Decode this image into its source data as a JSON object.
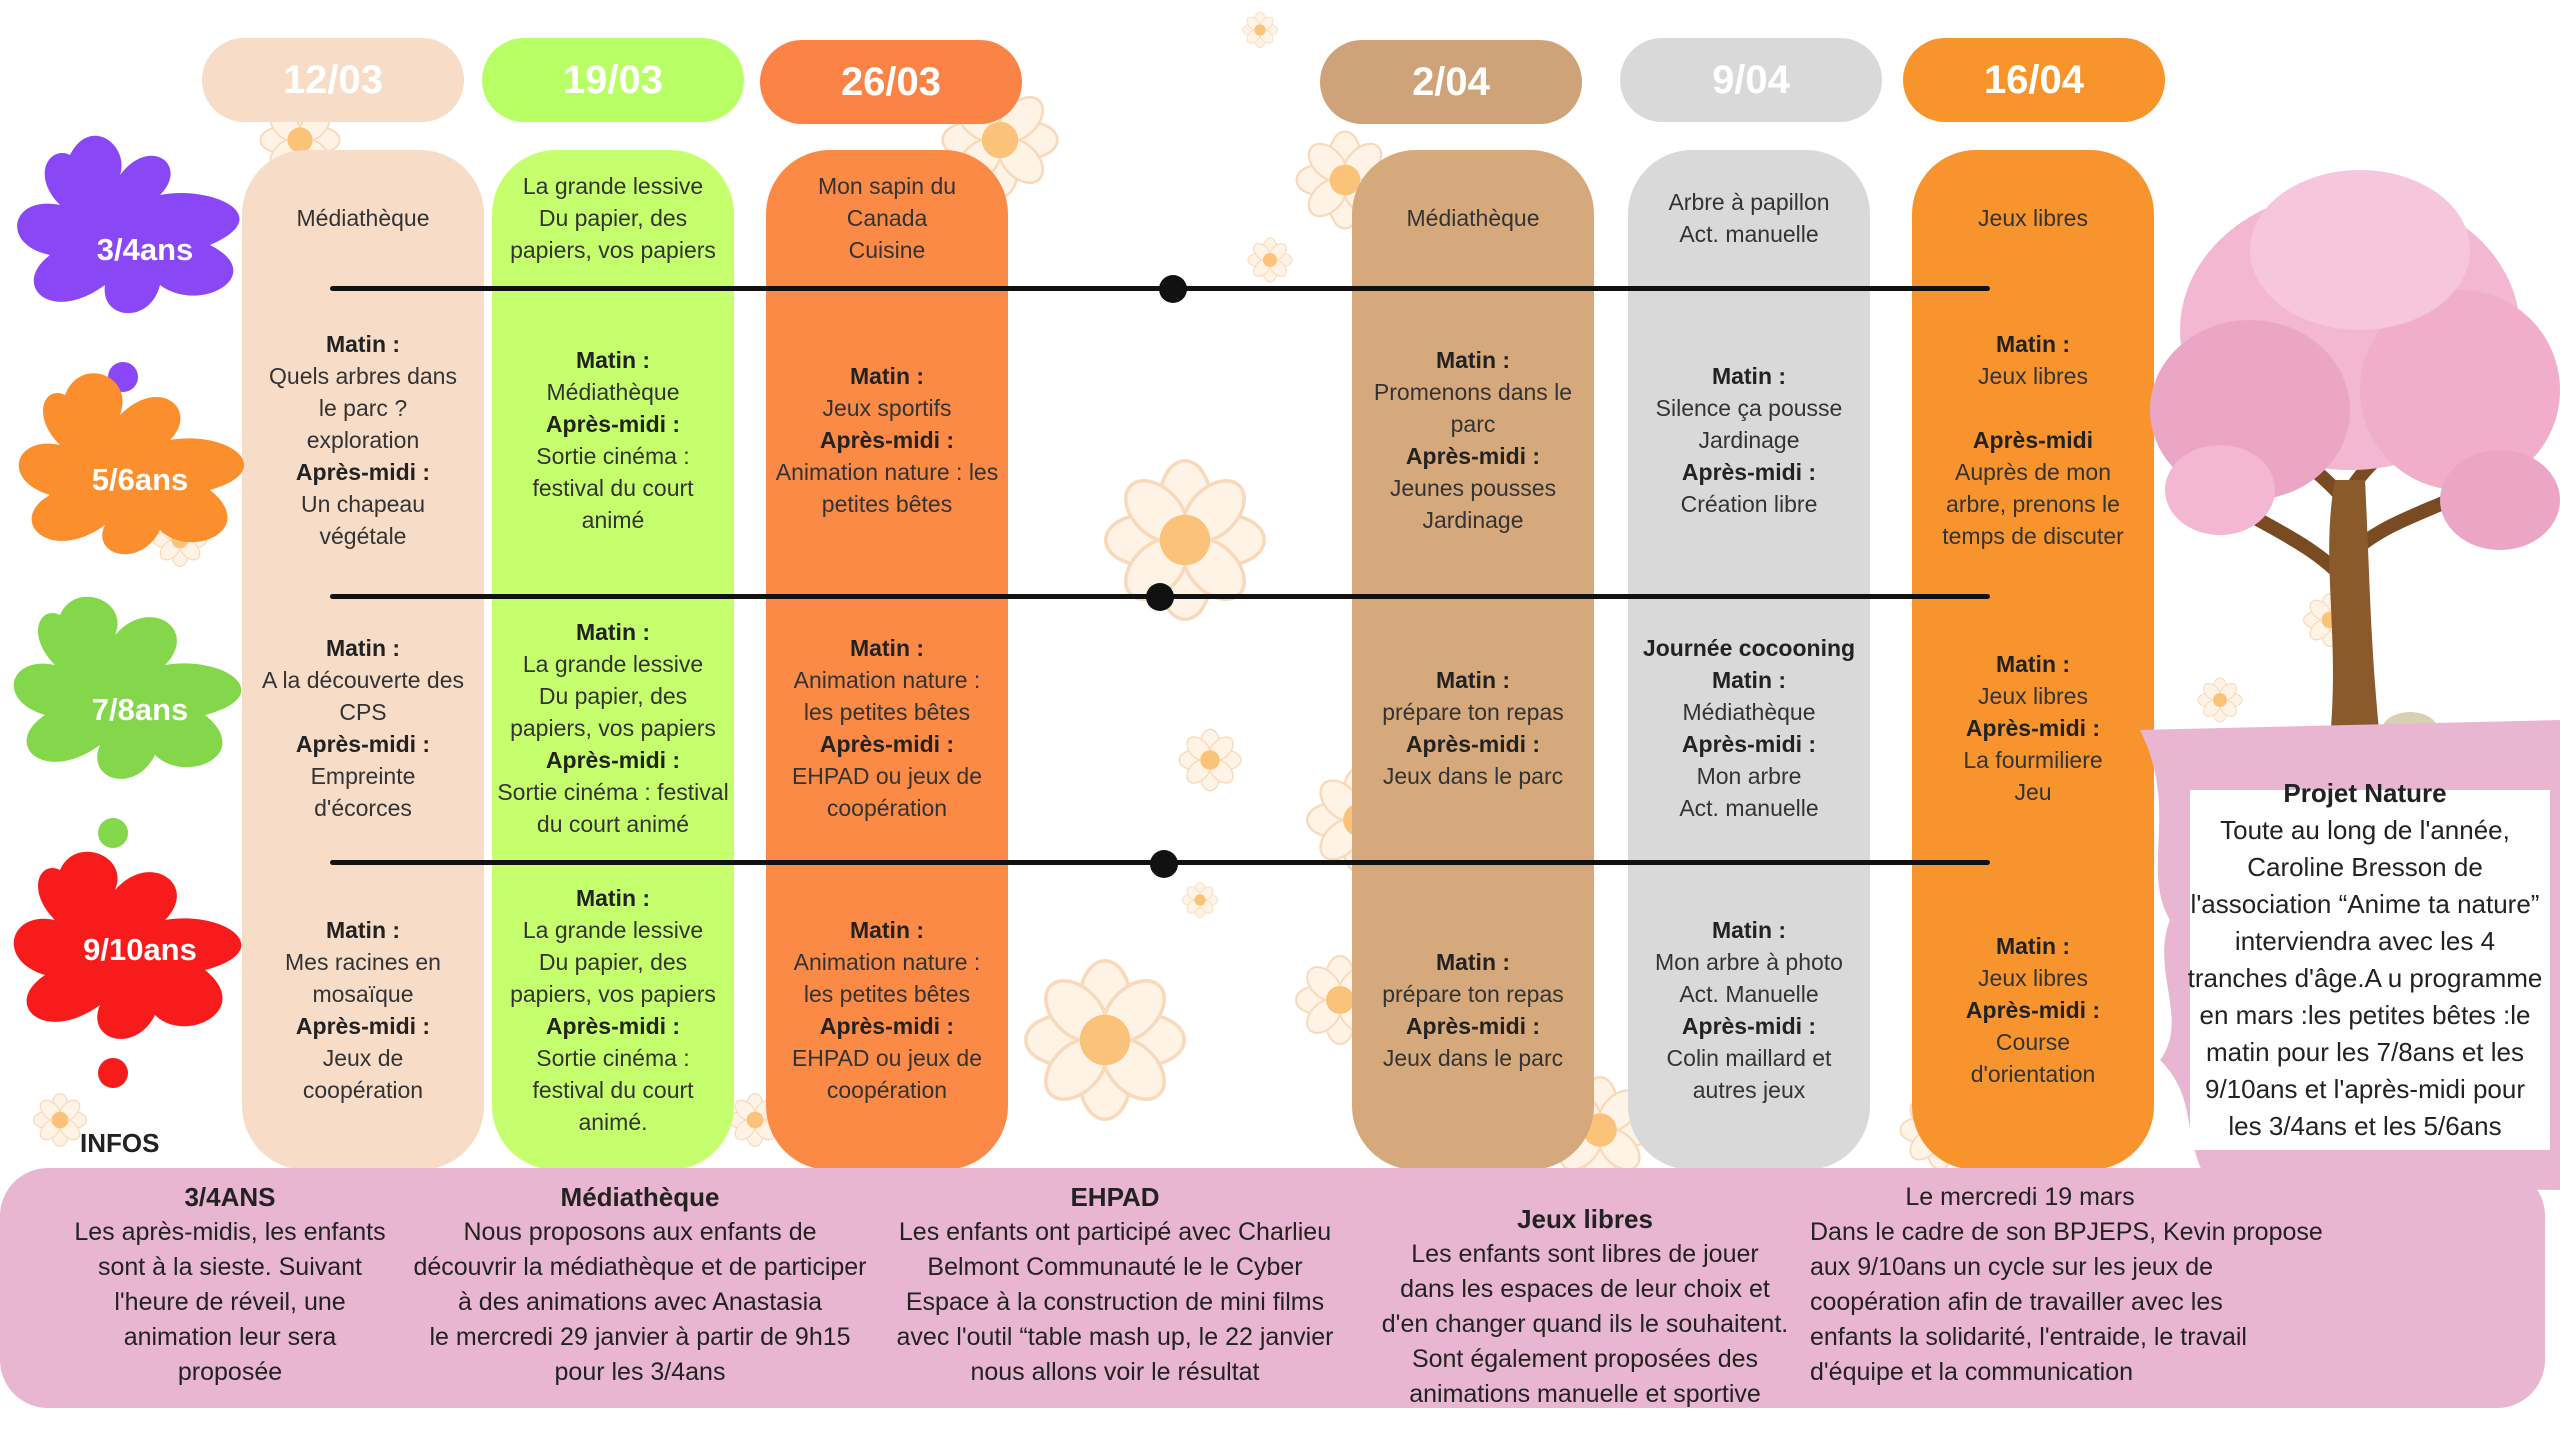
{
  "dates": [
    "12/03",
    "19/03",
    "26/03",
    "2/04",
    "9/04",
    "16/04"
  ],
  "age_groups": [
    "3/4ans",
    "5/6ans",
    "7/8ans",
    "9/10ans"
  ],
  "colors": {
    "col1": "#f7dcc7",
    "col2": "#c6ff6e",
    "col3": "#fb8a46",
    "col4": "#d6a97c",
    "col5": "#d9d9d9",
    "col6": "#f8942e",
    "pill1": "#f7dcc7",
    "pill2": "#b8ff66",
    "pill3": "#fb8346",
    "pill4": "#cfa37a",
    "pill5": "#d9d9d9",
    "pill6": "#f7942b",
    "splash1": "#8a47f5",
    "splash2": "#fb8f2e",
    "splash3": "#84d64a",
    "splash4": "#f71b1b",
    "info_bg": "#e8b6d1"
  },
  "columns": [
    {
      "r1": [
        "Médiathèque"
      ],
      "r2": [
        "**Matin :",
        "Quels arbres dans",
        "le parc ?",
        "exploration",
        "**Après-midi :",
        "Un chapeau",
        "végétale"
      ],
      "r3": [
        "**Matin :",
        "A la découverte des",
        "CPS",
        "**Après-midi :",
        "Empreinte",
        "d'écorces"
      ],
      "r4": [
        "**Matin :",
        "Mes racines en",
        "mosaïque",
        "**Après-midi :",
        "Jeux de",
        "coopération"
      ]
    },
    {
      "r1": [
        "La grande lessive",
        "Du papier, des",
        "papiers, vos papiers"
      ],
      "r2": [
        "**Matin :",
        "Médiathèque",
        "**Après-midi :",
        "Sortie cinéma :",
        "festival du court",
        "animé"
      ],
      "r3": [
        "**Matin :",
        "La grande lessive",
        "Du papier, des",
        "papiers, vos papiers",
        "**Après-midi :",
        "Sortie cinéma : festival",
        "du court animé"
      ],
      "r4": [
        "**Matin :",
        "La grande lessive",
        "Du papier, des",
        "papiers, vos papiers",
        "**Après-midi :",
        "Sortie cinéma :",
        "festival du court",
        "animé."
      ]
    },
    {
      "r1": [
        "Mon sapin du",
        "Canada",
        "Cuisine"
      ],
      "r2": [
        "**Matin :",
        "Jeux sportifs",
        "**Après-midi :",
        "Animation nature : les",
        "petites bêtes"
      ],
      "r3": [
        "**Matin :",
        "Animation nature :",
        "les petites bêtes",
        "**Après-midi :",
        "EHPAD ou jeux de",
        "coopération"
      ],
      "r4": [
        "**Matin :",
        "Animation nature :",
        "les petites bêtes",
        "**Après-midi :",
        "EHPAD ou jeux de",
        "coopération"
      ]
    },
    {
      "r1": [
        "Médiathèque"
      ],
      "r2": [
        "**Matin :",
        "Promenons dans le",
        "parc",
        "**Après-midi :",
        "Jeunes pousses",
        "Jardinage"
      ],
      "r3": [
        "**Matin :",
        "prépare ton repas",
        "**Après-midi :",
        "Jeux dans le parc"
      ],
      "r4": [
        "**Matin :",
        "prépare ton repas",
        "**Après-midi :",
        "Jeux dans le parc"
      ]
    },
    {
      "r1": [
        "Arbre à papillon",
        "Act. manuelle"
      ],
      "r2": [
        "**Matin :",
        "Silence ça pousse",
        "Jardinage",
        "**Après-midi :",
        "Création libre"
      ],
      "r3": [
        "**Journée cocooning",
        "**Matin :",
        "Médiathèque",
        "**Après-midi :",
        "Mon arbre",
        "Act. manuelle"
      ],
      "r4": [
        "**Matin :",
        "Mon arbre à photo",
        "Act. Manuelle",
        "**Après-midi :",
        "Colin maillard et",
        "autres jeux"
      ]
    },
    {
      "r1": [
        "Jeux libres"
      ],
      "r2": [
        "**Matin :",
        "Jeux libres",
        "",
        "**Après-midi",
        "Auprès de mon",
        "arbre, prenons le",
        "temps de discuter"
      ],
      "r3": [
        "**Matin :",
        "Jeux libres",
        "**Après-midi :",
        "La fourmiliere",
        "Jeu"
      ],
      "r4": [
        "**Matin :",
        "Jeux libres",
        "**Après-midi :",
        "Course",
        "d'orientation"
      ]
    }
  ],
  "projet": {
    "title": "Projet Nature",
    "lines": [
      "Toute au long de l'année,",
      "Caroline Bresson de",
      "l'association “Anime ta nature”",
      "interviendra avec les 4",
      "tranches d'âge.A u programme",
      "en mars :les petites bêtes :le",
      "matin pour les 7/8ans et les",
      "9/10ans et l'après-midi pour",
      "les 3/4ans et les 5/6ans"
    ]
  },
  "infos": {
    "label": "INFOS",
    "blocks": [
      {
        "title": "3/4ANS",
        "lines": [
          "Les après-midis, les enfants",
          "sont à la sieste. Suivant",
          "l'heure de réveil, une",
          "animation leur sera",
          "proposée"
        ]
      },
      {
        "title": "Médiathèque",
        "lines": [
          "Nous proposons aux enfants de",
          "découvrir la médiathèque et de participer",
          "à des animations avec Anastasia",
          "le mercredi 29 janvier à partir de 9h15",
          "pour les 3/4ans"
        ]
      },
      {
        "title": "EHPAD",
        "lines": [
          "Les enfants ont participé avec Charlieu",
          "Belmont Communauté le le Cyber",
          "Espace à la construction de mini films",
          "avec l'outil “table mash up, le 22 janvier",
          "nous allons voir le résultat"
        ]
      },
      {
        "title": "Jeux libres",
        "lines": [
          "Les enfants sont libres de jouer",
          "dans les espaces de leur choix et",
          "d'en changer quand ils le souhaitent.",
          "Sont également proposées des",
          "animations manuelle et sportive"
        ]
      },
      {
        "title": "Le mercredi 19 mars",
        "lines": [
          "Dans le cadre de son BPJEPS, Kevin propose",
          "aux 9/10ans un cycle sur les jeux de",
          "coopération afin de travailler avec les",
          "enfants la solidarité, l'entraide, le travail",
          "d'équipe et la communication"
        ]
      }
    ]
  }
}
